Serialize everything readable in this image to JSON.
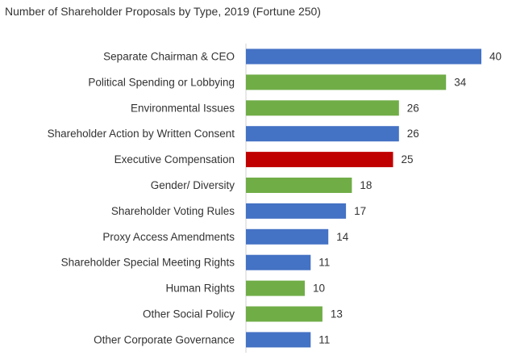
{
  "chart_data": {
    "type": "bar",
    "orientation": "horizontal",
    "title": "Number of Shareholder Proposals by Type, 2019 (Fortune 250)",
    "xlabel": "",
    "ylabel": "",
    "xlim": [
      0,
      40
    ],
    "grid": false,
    "legend": "none",
    "categories": [
      "Separate Chairman & CEO",
      "Political Spending or Lobbying",
      "Environmental Issues",
      "Shareholder Action by Written Consent",
      "Executive Compensation",
      "Gender/ Diversity",
      "Shareholder Voting Rules",
      "Proxy Access Amendments",
      "Shareholder Special Meeting Rights",
      "Human Rights",
      "Other Social Policy",
      "Other Corporate Governance"
    ],
    "values": [
      40,
      34,
      26,
      26,
      25,
      18,
      17,
      14,
      11,
      10,
      13,
      11
    ],
    "data_labels": [
      "40",
      "34",
      "26",
      "26",
      "25",
      "18",
      "17",
      "14",
      "11",
      "10",
      "13",
      "11"
    ],
    "bar_colors": [
      "#4472C4",
      "#70AD47",
      "#70AD47",
      "#4472C4",
      "#C00000",
      "#70AD47",
      "#4472C4",
      "#4472C4",
      "#4472C4",
      "#70AD47",
      "#70AD47",
      "#4472C4"
    ]
  }
}
